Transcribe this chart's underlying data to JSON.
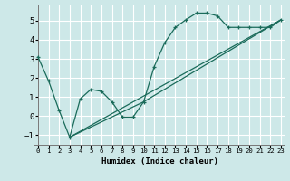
{
  "xlabel": "Humidex (Indice chaleur)",
  "bg_color": "#cde8e8",
  "grid_color": "#ffffff",
  "line_color": "#1a6b5a",
  "xlim": [
    0,
    23
  ],
  "ylim": [
    -1.5,
    5.8
  ],
  "xticks": [
    0,
    1,
    2,
    3,
    4,
    5,
    6,
    7,
    8,
    9,
    10,
    11,
    12,
    13,
    14,
    15,
    16,
    17,
    18,
    19,
    20,
    21,
    22,
    23
  ],
  "yticks": [
    -1,
    0,
    1,
    2,
    3,
    4,
    5
  ],
  "series1_x": [
    0,
    1,
    2,
    3,
    4,
    5,
    6,
    7,
    8,
    9,
    10,
    11,
    12,
    13,
    14,
    15,
    16,
    17,
    18,
    19,
    20,
    21,
    22,
    23
  ],
  "series1_y": [
    3.1,
    1.85,
    0.3,
    -1.1,
    0.9,
    1.4,
    1.3,
    0.75,
    -0.05,
    -0.05,
    0.75,
    2.6,
    3.85,
    4.65,
    5.05,
    5.4,
    5.4,
    5.25,
    4.65,
    4.65,
    4.65,
    4.65,
    4.65,
    5.05
  ],
  "series2_x": [
    3,
    23
  ],
  "series2_y": [
    -1.1,
    5.05
  ],
  "series3_x": [
    3,
    10,
    23
  ],
  "series3_y": [
    -1.1,
    0.75,
    5.05
  ]
}
